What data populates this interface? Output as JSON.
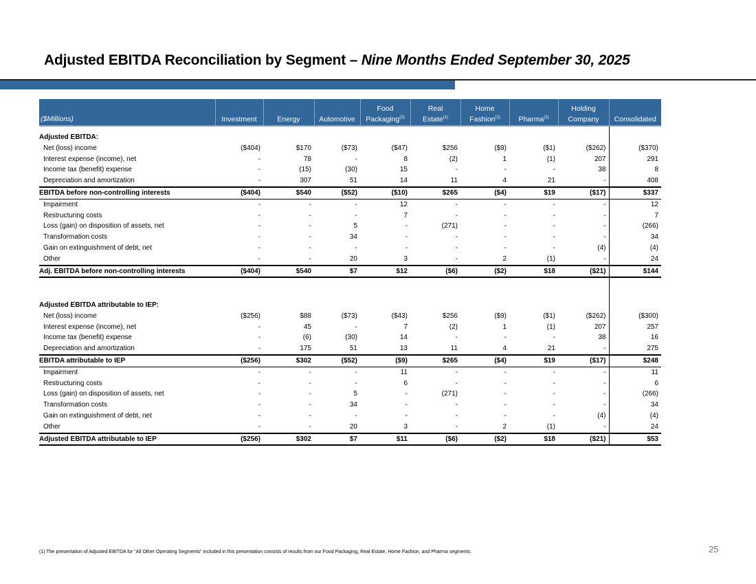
{
  "title": {
    "main": "Adjusted EBITDA Reconciliation by Segment – ",
    "italic": "Nine Months Ended September 30, 2025"
  },
  "colors": {
    "header_blue": "#336699"
  },
  "table": {
    "corner_label": "($Millions)",
    "columns": [
      {
        "line1": "",
        "line2": "Investment",
        "note": ""
      },
      {
        "line1": "",
        "line2": "Energy",
        "note": ""
      },
      {
        "line1": "",
        "line2": "Automotive",
        "note": ""
      },
      {
        "line1": "Food",
        "line2": "Packaging",
        "note": "(1)"
      },
      {
        "line1": "Real",
        "line2": "Estate",
        "note": "(1)"
      },
      {
        "line1": "Home",
        "line2": "Fashion",
        "note": "(1)"
      },
      {
        "line1": "",
        "line2": "Pharma",
        "note": "(1)"
      },
      {
        "line1": "Holding",
        "line2": "Company",
        "note": ""
      },
      {
        "line1": "",
        "line2": "Consolidated",
        "note": ""
      }
    ],
    "sections": [
      {
        "heading": "Adjusted EBITDA:",
        "rows": [
          {
            "label": "Net (loss) income",
            "type": "item",
            "values": [
              "($404)",
              "$170",
              "($73)",
              "($47)",
              "$256",
              "($9)",
              "($1)",
              "($262)",
              "($370)"
            ]
          },
          {
            "label": "Interest expense (income), net",
            "type": "item",
            "values": [
              "-",
              "78",
              "-",
              "8",
              "(2)",
              "1",
              "(1)",
              "207",
              "291"
            ]
          },
          {
            "label": "Income tax (benefit) expense",
            "type": "item",
            "values": [
              "-",
              "(15)",
              "(30)",
              "15",
              "-",
              "-",
              "-",
              "38",
              "8"
            ]
          },
          {
            "label": "Depreciation and amortization",
            "type": "item",
            "values": [
              "-",
              "307",
              "51",
              "14",
              "11",
              "4",
              "21",
              "-",
              "408"
            ]
          },
          {
            "label": "EBITDA before non-controlling interests",
            "type": "total",
            "values": [
              "($404)",
              "$540",
              "($52)",
              "($10)",
              "$265",
              "($4)",
              "$19",
              "($17)",
              "$337"
            ]
          },
          {
            "label": "Impairment",
            "type": "item",
            "values": [
              "-",
              "-",
              "-",
              "12",
              "-",
              "-",
              "-",
              "-",
              "12"
            ]
          },
          {
            "label": "Restructuring costs",
            "type": "item",
            "values": [
              "-",
              "-",
              "-",
              "7",
              "-",
              "-",
              "-",
              "-",
              "7"
            ]
          },
          {
            "label": "Loss (gain) on disposition of assets, net",
            "type": "item",
            "values": [
              "-",
              "-",
              "5",
              "-",
              "(271)",
              "-",
              "-",
              "-",
              "(266)"
            ]
          },
          {
            "label": "Transformation costs",
            "type": "item",
            "values": [
              "-",
              "-",
              "34",
              "-",
              "-",
              "-",
              "-",
              "-",
              "34"
            ]
          },
          {
            "label": "Gain on extinguishment of debt, net",
            "type": "item",
            "values": [
              "-",
              "-",
              "-",
              "-",
              "-",
              "-",
              "-",
              "(4)",
              "(4)"
            ]
          },
          {
            "label": "Other",
            "type": "item",
            "values": [
              "-",
              "-",
              "20",
              "3",
              "-",
              "2",
              "(1)",
              "-",
              "24"
            ]
          },
          {
            "label": "Adj. EBITDA before non-controlling interests",
            "type": "final",
            "values": [
              "($404)",
              "$540",
              "$7",
              "$12",
              "($6)",
              "($2)",
              "$18",
              "($21)",
              "$144"
            ]
          }
        ]
      },
      {
        "heading": "Adjusted EBITDA attributable to IEP:",
        "rows": [
          {
            "label": "Net (loss) income",
            "type": "item",
            "values": [
              "($256)",
              "$88",
              "($73)",
              "($43)",
              "$256",
              "($9)",
              "($1)",
              "($262)",
              "($300)"
            ]
          },
          {
            "label": "Interest expense (income), net",
            "type": "item",
            "values": [
              "-",
              "45",
              "-",
              "7",
              "(2)",
              "1",
              "(1)",
              "207",
              "257"
            ]
          },
          {
            "label": "Income tax (benefit) expense",
            "type": "item",
            "values": [
              "-",
              "(6)",
              "(30)",
              "14",
              "-",
              "-",
              "-",
              "38",
              "16"
            ]
          },
          {
            "label": "Depreciation and amortization",
            "type": "item",
            "values": [
              "-",
              "175",
              "51",
              "13",
              "11",
              "4",
              "21",
              "-",
              "275"
            ]
          },
          {
            "label": "EBITDA attributable to IEP",
            "type": "total",
            "values": [
              "($256)",
              "$302",
              "($52)",
              "($9)",
              "$265",
              "($4)",
              "$19",
              "($17)",
              "$248"
            ]
          },
          {
            "label": "Impairment",
            "type": "item",
            "values": [
              "-",
              "-",
              "-",
              "11",
              "-",
              "-",
              "-",
              "-",
              "11"
            ]
          },
          {
            "label": "Restructuring costs",
            "type": "item",
            "values": [
              "-",
              "-",
              "-",
              "6",
              "-",
              "-",
              "-",
              "-",
              "6"
            ]
          },
          {
            "label": "Loss (gain) on disposition of assets, net",
            "type": "item",
            "values": [
              "-",
              "-",
              "5",
              "-",
              "(271)",
              "-",
              "-",
              "-",
              "(266)"
            ]
          },
          {
            "label": "Transformation costs",
            "type": "item",
            "values": [
              "-",
              "-",
              "34",
              "-",
              "-",
              "-",
              "-",
              "-",
              "34"
            ]
          },
          {
            "label": "Gain on extinguishment of debt, net",
            "type": "item",
            "values": [
              "-",
              "-",
              "-",
              "-",
              "-",
              "-",
              "-",
              "(4)",
              "(4)"
            ]
          },
          {
            "label": "Other",
            "type": "item",
            "values": [
              "-",
              "-",
              "20",
              "3",
              "-",
              "2",
              "(1)",
              "-",
              "24"
            ]
          },
          {
            "label": "Adjusted EBITDA attributable to IEP",
            "type": "final",
            "values": [
              "($256)",
              "$302",
              "$7",
              "$11",
              "($6)",
              "($2)",
              "$18",
              "($21)",
              "$53"
            ]
          }
        ]
      }
    ]
  },
  "footnote": "(1) The presentation of Adjusted EBITDA for “All Other Operating Segments” included in this presentation consists of results from our Food Packaging, Real Estate, Home Fashion, and Pharma segments.",
  "page_number": "25"
}
